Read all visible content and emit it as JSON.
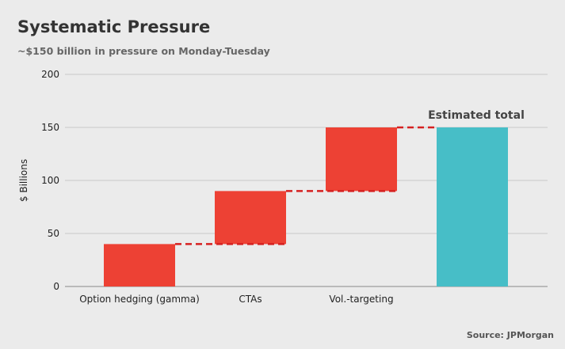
{
  "header": {
    "title": "Systematic Pressure",
    "subtitle": "~$150 billion in pressure on Monday-Tuesday"
  },
  "footer": {
    "source": "Source: JPMorgan"
  },
  "chart_data": {
    "type": "bar",
    "subtype": "waterfall",
    "categories": [
      "Option hedging (gamma)",
      "CTAs",
      "Vol.-targeting",
      ""
    ],
    "series": [
      {
        "values": [
          40,
          50,
          60,
          150
        ],
        "base": [
          0,
          40,
          90,
          0
        ]
      }
    ],
    "ylabel": "$ Billions",
    "xlabel": "",
    "ylim": [
      0,
      200
    ],
    "yticks": [
      0,
      50,
      100,
      150,
      200
    ],
    "grid": true,
    "legend": "none",
    "connectors": "dashed",
    "annotation": "Estimated total",
    "colors": {
      "increment": "#ed4134",
      "total": "#47bec7",
      "connector": "#d62020",
      "grid": "#c9c9c9",
      "background": "#ebebeb"
    }
  }
}
